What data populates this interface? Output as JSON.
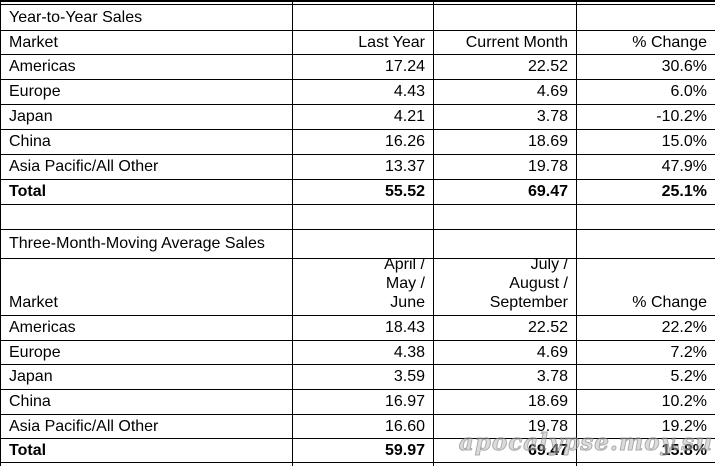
{
  "watermark": {
    "text": "apocalypse.moy.su"
  },
  "year_to_year": {
    "title": "Year-to-Year Sales",
    "header": {
      "market": "Market",
      "col1": "Last Year",
      "col2": "Current Month",
      "col3": "% Change"
    },
    "rows": [
      {
        "market": "Americas",
        "col1": "17.24",
        "col2": "22.52",
        "col3": "30.6%"
      },
      {
        "market": "Europe",
        "col1": "4.43",
        "col2": "4.69",
        "col3": "6.0%"
      },
      {
        "market": "Japan",
        "col1": "4.21",
        "col2": "3.78",
        "col3": "-10.2%"
      },
      {
        "market": "China",
        "col1": "16.26",
        "col2": "18.69",
        "col3": "15.0%"
      },
      {
        "market": "Asia Pacific/All Other",
        "col1": "13.37",
        "col2": "19.78",
        "col3": "47.9%"
      }
    ],
    "total": {
      "market": "Total",
      "col1": "55.52",
      "col2": "69.47",
      "col3": "25.1%"
    }
  },
  "three_month": {
    "title": "Three-Month-Moving Average Sales",
    "header": {
      "market": "Market",
      "col1_lines": [
        "April /",
        "May /",
        "June"
      ],
      "col2_lines": [
        "July /",
        "August /",
        "September"
      ],
      "col3": "% Change"
    },
    "rows": [
      {
        "market": "Americas",
        "col1": "18.43",
        "col2": "22.52",
        "col3": "22.2%"
      },
      {
        "market": "Europe",
        "col1": "4.38",
        "col2": "4.69",
        "col3": "7.2%"
      },
      {
        "market": "Japan",
        "col1": "3.59",
        "col2": "3.78",
        "col3": "5.2%"
      },
      {
        "market": "China",
        "col1": "16.97",
        "col2": "18.69",
        "col3": "10.2%"
      },
      {
        "market": "Asia Pacific/All Other",
        "col1": "16.60",
        "col2": "19.78",
        "col3": "19.2%"
      }
    ],
    "total": {
      "market": "Total",
      "col1": "59.97",
      "col2": "69.47",
      "col3": "15.8%"
    }
  }
}
